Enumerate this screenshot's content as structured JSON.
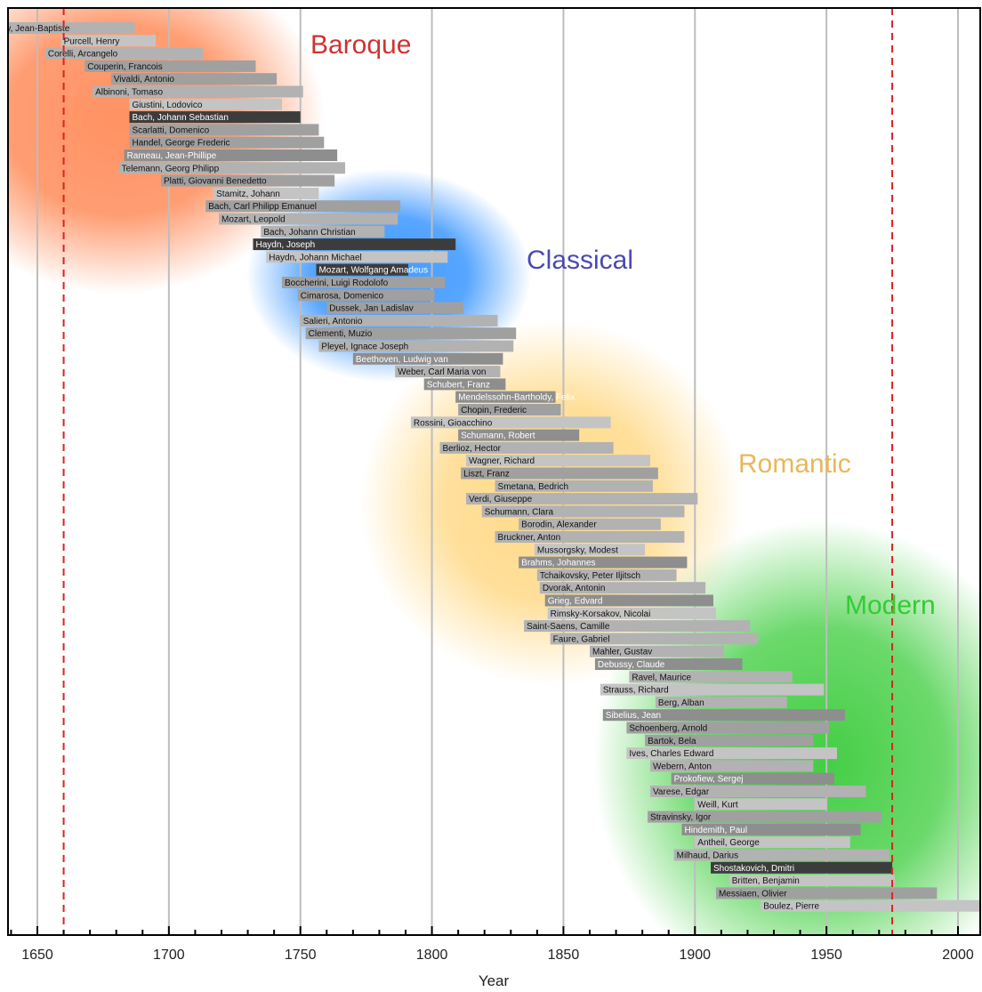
{
  "chart_data": {
    "type": "timeline",
    "xlabel": "Year",
    "xlim": [
      1640,
      2009
    ],
    "xticks": [
      1650,
      1700,
      1750,
      1800,
      1850,
      1900,
      1950,
      2000
    ],
    "minor_tick_step": 10,
    "reference_lines": [
      1660,
      1975
    ],
    "eras": [
      {
        "name": "Baroque",
        "color": "#cc3333",
        "glow": "#ff8c5a"
      },
      {
        "name": "Classical",
        "color": "#4a4ab0",
        "glow": "#3a96ff"
      },
      {
        "name": "Romantic",
        "color": "#e8b858",
        "glow": "#ffd270"
      },
      {
        "name": "Modern",
        "color": "#33cc33",
        "glow": "#3acc3a"
      }
    ],
    "composers": [
      {
        "name": "Lully, Jean-Baptiste",
        "start": 1632,
        "end": 1687,
        "shade": 2
      },
      {
        "name": "Purcell, Henry",
        "start": 1659,
        "end": 1695,
        "shade": 1
      },
      {
        "name": "Corelli, Arcangelo",
        "start": 1653,
        "end": 1713,
        "shade": 2
      },
      {
        "name": "Couperin, Francois",
        "start": 1668,
        "end": 1733,
        "shade": 3
      },
      {
        "name": "Vivaldi, Antonio",
        "start": 1678,
        "end": 1741,
        "shade": 3
      },
      {
        "name": "Albinoni, Tomaso",
        "start": 1671,
        "end": 1751,
        "shade": 2
      },
      {
        "name": "Giustini, Lodovico",
        "start": 1685,
        "end": 1743,
        "shade": 1
      },
      {
        "name": "Bach, Johann Sebastian",
        "start": 1685,
        "end": 1750,
        "shade": 5
      },
      {
        "name": "Scarlatti, Domenico",
        "start": 1685,
        "end": 1757,
        "shade": 3
      },
      {
        "name": "Handel, George Frederic",
        "start": 1685,
        "end": 1759,
        "shade": 3
      },
      {
        "name": "Rameau, Jean-Phillipe",
        "start": 1683,
        "end": 1764,
        "shade": 4
      },
      {
        "name": "Telemann, Georg Philipp",
        "start": 1681,
        "end": 1767,
        "shade": 2
      },
      {
        "name": "Platti, Giovanni Benedetto",
        "start": 1697,
        "end": 1763,
        "shade": 3
      },
      {
        "name": "Stamitz, Johann",
        "start": 1717,
        "end": 1757,
        "shade": 1
      },
      {
        "name": "Bach, Carl Philipp Emanuel",
        "start": 1714,
        "end": 1788,
        "shade": 3
      },
      {
        "name": "Mozart, Leopold",
        "start": 1719,
        "end": 1787,
        "shade": 2
      },
      {
        "name": "Bach, Johann Christian",
        "start": 1735,
        "end": 1782,
        "shade": 2
      },
      {
        "name": "Haydn, Joseph",
        "start": 1732,
        "end": 1809,
        "shade": 5
      },
      {
        "name": "Haydn, Johann Michael",
        "start": 1737,
        "end": 1806,
        "shade": 1
      },
      {
        "name": "Mozart, Wolfgang Amadeus",
        "start": 1756,
        "end": 1791,
        "shade": 5
      },
      {
        "name": "Boccherini, Luigi Rodolofo",
        "start": 1743,
        "end": 1805,
        "shade": 3
      },
      {
        "name": "Cimarosa, Domenico",
        "start": 1749,
        "end": 1801,
        "shade": 3
      },
      {
        "name": "Dussek, Jan Ladislav",
        "start": 1760,
        "end": 1812,
        "shade": 3
      },
      {
        "name": "Salieri, Antonio",
        "start": 1750,
        "end": 1825,
        "shade": 2
      },
      {
        "name": "Clementi, Muzio",
        "start": 1752,
        "end": 1832,
        "shade": 3
      },
      {
        "name": "Pleyel, Ignace Joseph",
        "start": 1757,
        "end": 1831,
        "shade": 2
      },
      {
        "name": "Beethoven, Ludwig van",
        "start": 1770,
        "end": 1827,
        "shade": 4
      },
      {
        "name": "Weber, Carl Maria von",
        "start": 1786,
        "end": 1826,
        "shade": 2
      },
      {
        "name": "Schubert, Franz",
        "start": 1797,
        "end": 1828,
        "shade": 4
      },
      {
        "name": "Mendelssohn-Bartholdy, Felix",
        "start": 1809,
        "end": 1847,
        "shade": 4
      },
      {
        "name": "Chopin, Frederic",
        "start": 1810,
        "end": 1849,
        "shade": 3
      },
      {
        "name": "Rossini, Gioacchino",
        "start": 1792,
        "end": 1868,
        "shade": 1
      },
      {
        "name": "Schumann, Robert",
        "start": 1810,
        "end": 1856,
        "shade": 4
      },
      {
        "name": "Berlioz, Hector",
        "start": 1803,
        "end": 1869,
        "shade": 2
      },
      {
        "name": "Wagner, Richard",
        "start": 1813,
        "end": 1883,
        "shade": 1
      },
      {
        "name": "Liszt, Franz",
        "start": 1811,
        "end": 1886,
        "shade": 3
      },
      {
        "name": "Smetana, Bedrich",
        "start": 1824,
        "end": 1884,
        "shade": 2
      },
      {
        "name": "Verdi, Giuseppe",
        "start": 1813,
        "end": 1901,
        "shade": 2
      },
      {
        "name": "Schumann, Clara",
        "start": 1819,
        "end": 1896,
        "shade": 2
      },
      {
        "name": "Borodin, Alexander",
        "start": 1833,
        "end": 1887,
        "shade": 2
      },
      {
        "name": "Bruckner, Anton",
        "start": 1824,
        "end": 1896,
        "shade": 2
      },
      {
        "name": "Mussorgsky, Modest",
        "start": 1839,
        "end": 1881,
        "shade": 1
      },
      {
        "name": "Brahms, Johannes",
        "start": 1833,
        "end": 1897,
        "shade": 4
      },
      {
        "name": "Tchaikovsky, Peter Iljitsch",
        "start": 1840,
        "end": 1893,
        "shade": 2
      },
      {
        "name": "Dvorak, Antonin",
        "start": 1841,
        "end": 1904,
        "shade": 2
      },
      {
        "name": "Grieg, Edvard",
        "start": 1843,
        "end": 1907,
        "shade": 4
      },
      {
        "name": "Rimsky-Korsakov, Nicolai",
        "start": 1844,
        "end": 1908,
        "shade": 1
      },
      {
        "name": "Saint-Saens, Camille",
        "start": 1835,
        "end": 1921,
        "shade": 2
      },
      {
        "name": "Faure, Gabriel",
        "start": 1845,
        "end": 1924,
        "shade": 2
      },
      {
        "name": "Mahler, Gustav",
        "start": 1860,
        "end": 1911,
        "shade": 2
      },
      {
        "name": "Debussy, Claude",
        "start": 1862,
        "end": 1918,
        "shade": 4
      },
      {
        "name": "Ravel, Maurice",
        "start": 1875,
        "end": 1937,
        "shade": 2
      },
      {
        "name": "Strauss, Richard",
        "start": 1864,
        "end": 1949,
        "shade": 1
      },
      {
        "name": "Berg, Alban",
        "start": 1885,
        "end": 1935,
        "shade": 2
      },
      {
        "name": "Sibelius, Jean",
        "start": 1865,
        "end": 1957,
        "shade": 4
      },
      {
        "name": "Schoenberg, Arnold",
        "start": 1874,
        "end": 1951,
        "shade": 3
      },
      {
        "name": "Bartok, Bela",
        "start": 1881,
        "end": 1945,
        "shade": 3
      },
      {
        "name": "Ives, Charles Edward",
        "start": 1874,
        "end": 1954,
        "shade": 1
      },
      {
        "name": "Webern, Anton",
        "start": 1883,
        "end": 1945,
        "shade": 2
      },
      {
        "name": "Prokofiew, Sergej",
        "start": 1891,
        "end": 1953,
        "shade": 4
      },
      {
        "name": "Varese, Edgar",
        "start": 1883,
        "end": 1965,
        "shade": 2
      },
      {
        "name": "Weill, Kurt",
        "start": 1900,
        "end": 1950,
        "shade": 1
      },
      {
        "name": "Stravinsky, Igor",
        "start": 1882,
        "end": 1971,
        "shade": 3
      },
      {
        "name": "Hindemith, Paul",
        "start": 1895,
        "end": 1963,
        "shade": 4
      },
      {
        "name": "Antheil, George",
        "start": 1900,
        "end": 1959,
        "shade": 1
      },
      {
        "name": "Milhaud, Darius",
        "start": 1892,
        "end": 1974,
        "shade": 2
      },
      {
        "name": "Shostakovich, Dmitri",
        "start": 1906,
        "end": 1975,
        "shade": 5
      },
      {
        "name": "Britten, Benjamin",
        "start": 1913,
        "end": 1976,
        "shade": 1
      },
      {
        "name": "Messiaen, Olivier",
        "start": 1908,
        "end": 1992,
        "shade": 3
      },
      {
        "name": "Boulez, Pierre",
        "start": 1925,
        "end": 2016,
        "shade": 1
      }
    ]
  }
}
